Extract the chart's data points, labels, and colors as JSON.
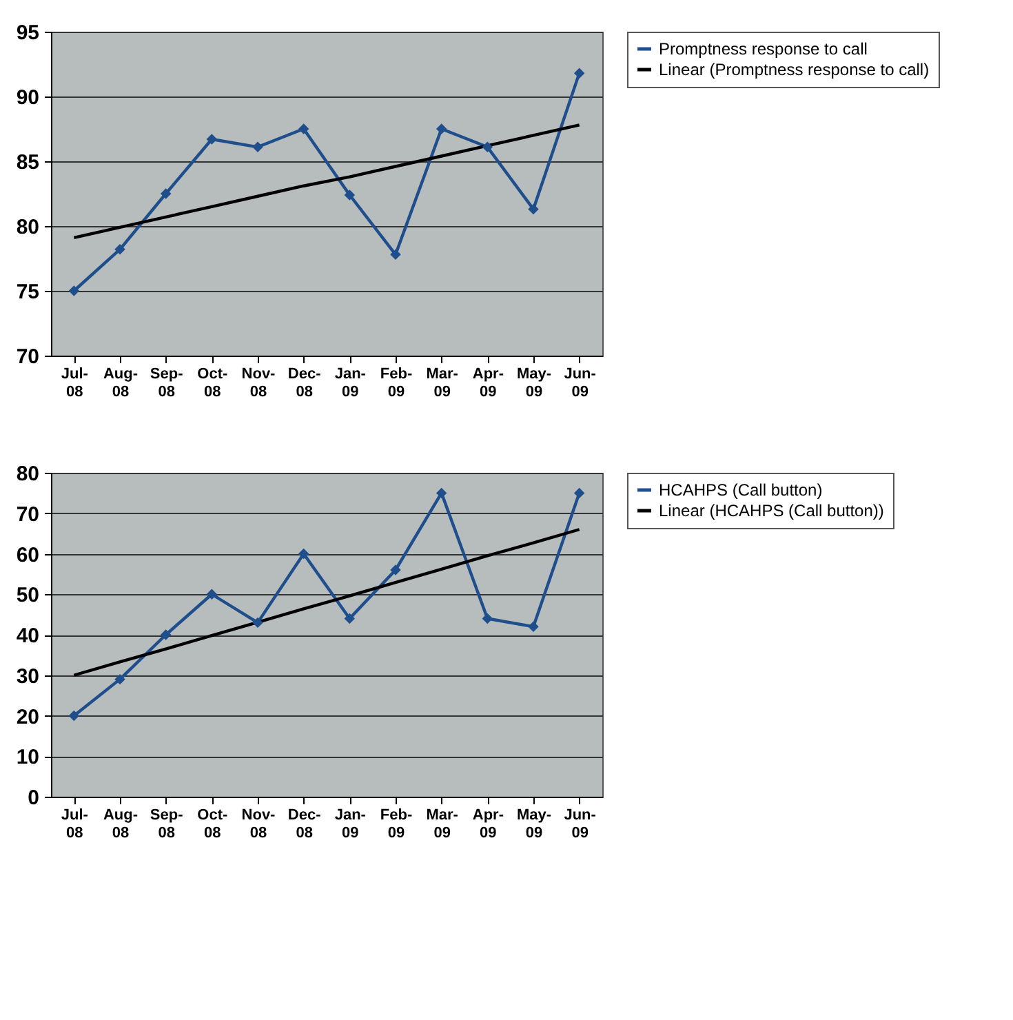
{
  "chart_data": [
    {
      "type": "line",
      "categories": [
        "Jul-08",
        "Aug-08",
        "Sep-08",
        "Oct-08",
        "Nov-08",
        "Dec-08",
        "Jan-09",
        "Feb-09",
        "Mar-09",
        "Apr-09",
        "May-09",
        "Jun-09"
      ],
      "ylim": [
        70,
        95
      ],
      "yticks": [
        70,
        75,
        80,
        85,
        90,
        95
      ],
      "grid": "y",
      "legend": "right",
      "series": [
        {
          "name": "Promptness response to call",
          "color": "#1f4e8c",
          "marker": "diamond",
          "values": [
            75,
            78.2,
            82.5,
            86.7,
            86.1,
            87.5,
            82.4,
            77.8,
            87.5,
            86.1,
            81.3,
            91.8
          ]
        },
        {
          "name": "Linear (Promptness response to call)",
          "color": "#000000",
          "marker": "none",
          "values": [
            79.1,
            79.9,
            80.7,
            81.5,
            82.3,
            83.1,
            83.8,
            84.6,
            85.4,
            86.2,
            87.0,
            87.8
          ]
        }
      ]
    },
    {
      "type": "line",
      "categories": [
        "Jul-08",
        "Aug-08",
        "Sep-08",
        "Oct-08",
        "Nov-08",
        "Dec-08",
        "Jan-09",
        "Feb-09",
        "Mar-09",
        "Apr-09",
        "May-09",
        "Jun-09"
      ],
      "ylim": [
        0,
        80
      ],
      "yticks": [
        0,
        10,
        20,
        30,
        40,
        50,
        60,
        70,
        80
      ],
      "grid": "y",
      "legend": "right",
      "series": [
        {
          "name": "HCAHPS (Call button)",
          "color": "#1f4e8c",
          "marker": "diamond",
          "values": [
            20,
            29,
            40,
            50,
            43,
            60,
            44,
            56,
            75,
            44,
            42,
            75
          ]
        },
        {
          "name": "Linear (HCAHPS (Call button))",
          "color": "#000000",
          "marker": "none",
          "values": [
            30,
            33.3,
            36.5,
            39.8,
            43.1,
            46.4,
            49.6,
            52.9,
            56.2,
            59.5,
            62.7,
            66.0
          ]
        }
      ]
    }
  ]
}
